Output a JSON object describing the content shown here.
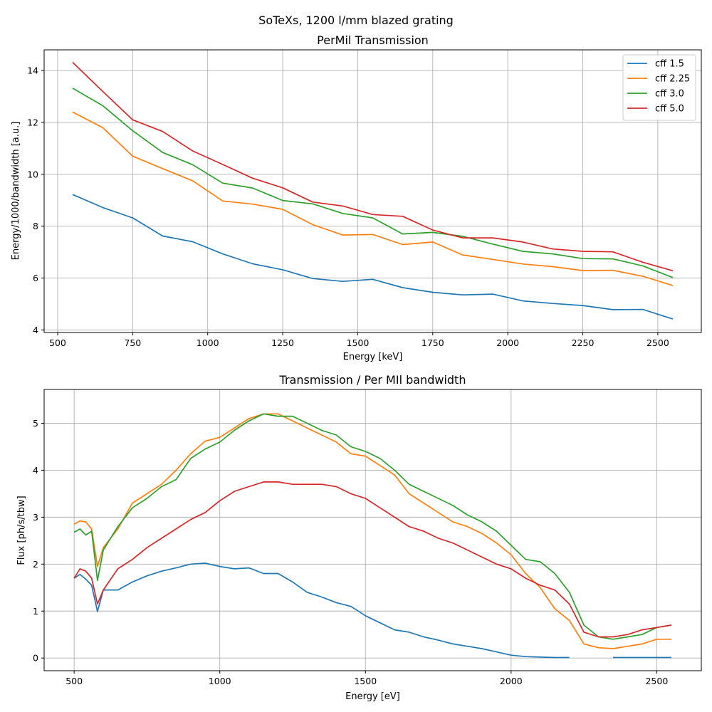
{
  "figure": {
    "suptitle": "SoTeXs, 1200 l/mm blazed grating"
  },
  "colors": {
    "cff 1.5": "#1f77b4",
    "cff 2.25": "#ff7f0e",
    "cff 3.0": "#2ca02c",
    "cff 5.0": "#d62728",
    "grid": "#b0b0b0"
  },
  "chart_data": [
    {
      "type": "line",
      "title": "PerMil Transmission",
      "xlabel": "Energy [keV]",
      "ylabel": "Energy/1000/bandwidth [a.u.]",
      "xlim": [
        455,
        2645
      ],
      "ylim": [
        3.9,
        14.8
      ],
      "xticks": [
        500,
        750,
        1000,
        1250,
        1500,
        1750,
        2000,
        2250,
        2500
      ],
      "yticks": [
        4,
        6,
        8,
        10,
        12,
        14
      ],
      "grid": true,
      "legend": "top-right",
      "x": [
        550,
        650,
        750,
        850,
        950,
        1050,
        1150,
        1250,
        1350,
        1450,
        1550,
        1650,
        1750,
        1850,
        1950,
        2050,
        2150,
        2250,
        2350,
        2450,
        2550
      ],
      "series": [
        {
          "name": "cff 1.5",
          "values": [
            9.22,
            8.72,
            8.32,
            7.62,
            7.4,
            6.93,
            6.55,
            6.32,
            5.98,
            5.87,
            5.95,
            5.63,
            5.45,
            5.35,
            5.38,
            5.12,
            5.02,
            4.94,
            4.78,
            4.79,
            4.42
          ]
        },
        {
          "name": "cff 2.25",
          "values": [
            12.4,
            11.8,
            10.7,
            10.22,
            9.75,
            8.97,
            8.85,
            8.65,
            8.06,
            7.66,
            7.68,
            7.29,
            7.39,
            6.89,
            6.72,
            6.54,
            6.44,
            6.29,
            6.3,
            6.07,
            5.71
          ]
        },
        {
          "name": "cff 3.0",
          "values": [
            13.32,
            12.65,
            11.68,
            10.84,
            10.37,
            9.66,
            9.47,
            8.99,
            8.86,
            8.49,
            8.32,
            7.7,
            7.76,
            7.61,
            7.31,
            7.03,
            6.93,
            6.75,
            6.74,
            6.47,
            6.02
          ]
        },
        {
          "name": "cff 5.0",
          "values": [
            14.32,
            13.2,
            12.1,
            11.65,
            10.9,
            10.38,
            9.85,
            9.48,
            8.93,
            8.78,
            8.45,
            8.38,
            7.85,
            7.55,
            7.55,
            7.39,
            7.12,
            7.03,
            7.01,
            6.61,
            6.28
          ]
        }
      ]
    },
    {
      "type": "line",
      "title": "Transmission / Per MIl bandwidth",
      "xlabel": "Energy [eV]",
      "ylabel": "Flux [ph/s/tbw]",
      "xlim": [
        397,
        2653
      ],
      "ylim": [
        -0.27,
        5.72
      ],
      "xticks": [
        500,
        1000,
        1500,
        2000,
        2500
      ],
      "yticks": [
        0,
        1,
        2,
        3,
        4,
        5
      ],
      "grid": true,
      "x": [
        500,
        520,
        540,
        560,
        580,
        600,
        650,
        700,
        750,
        800,
        850,
        900,
        950,
        1000,
        1050,
        1100,
        1150,
        1200,
        1250,
        1300,
        1350,
        1400,
        1450,
        1500,
        1550,
        1600,
        1650,
        1700,
        1750,
        1800,
        1850,
        1900,
        1950,
        2000,
        2050,
        2100,
        2150,
        2200,
        2250,
        2300,
        2350,
        2400,
        2450,
        2500,
        2550
      ],
      "series": [
        {
          "name": "cff 1.5",
          "values": [
            1.7,
            1.78,
            1.68,
            1.55,
            0.99,
            1.45,
            1.45,
            1.62,
            1.75,
            1.85,
            1.92,
            2.0,
            2.02,
            1.95,
            1.9,
            1.92,
            1.8,
            1.8,
            1.62,
            1.4,
            1.3,
            1.18,
            1.1,
            0.9,
            0.75,
            0.6,
            0.55,
            0.45,
            0.38,
            0.3,
            0.25,
            0.2,
            0.13,
            0.06,
            0.03,
            0.02,
            0.01,
            0.01,
            null,
            null,
            0.01,
            0.01,
            0.01,
            0.01,
            0.01
          ]
        },
        {
          "name": "cff 2.25",
          "values": [
            2.85,
            2.92,
            2.9,
            2.75,
            1.95,
            2.35,
            2.75,
            3.3,
            3.5,
            3.7,
            4.0,
            4.35,
            4.62,
            4.7,
            4.9,
            5.1,
            5.2,
            5.2,
            5.05,
            4.9,
            4.75,
            4.6,
            4.35,
            4.3,
            4.1,
            3.9,
            3.5,
            3.3,
            3.1,
            2.9,
            2.8,
            2.65,
            2.45,
            2.2,
            1.8,
            1.5,
            1.05,
            0.8,
            0.3,
            0.22,
            0.2,
            0.25,
            0.3,
            0.4,
            0.4
          ]
        },
        {
          "name": "cff 3.0",
          "values": [
            2.68,
            2.75,
            2.62,
            2.7,
            1.65,
            2.3,
            2.8,
            3.2,
            3.4,
            3.65,
            3.8,
            4.25,
            4.45,
            4.6,
            4.85,
            5.05,
            5.2,
            5.15,
            5.15,
            5.0,
            4.85,
            4.75,
            4.5,
            4.4,
            4.25,
            4.0,
            3.7,
            3.55,
            3.4,
            3.25,
            3.05,
            2.9,
            2.7,
            2.4,
            2.1,
            2.05,
            1.8,
            1.4,
            0.7,
            0.45,
            0.4,
            0.45,
            0.5,
            0.65,
            0.7
          ]
        },
        {
          "name": "cff 5.0",
          "values": [
            1.7,
            1.9,
            1.85,
            1.7,
            1.15,
            1.45,
            1.9,
            2.1,
            2.35,
            2.55,
            2.75,
            2.95,
            3.1,
            3.35,
            3.55,
            3.65,
            3.75,
            3.75,
            3.7,
            3.7,
            3.7,
            3.65,
            3.5,
            3.4,
            3.2,
            3.0,
            2.8,
            2.7,
            2.55,
            2.45,
            2.3,
            2.15,
            2.0,
            1.9,
            1.7,
            1.55,
            1.45,
            1.15,
            0.55,
            0.45,
            0.45,
            0.5,
            0.6,
            0.65,
            0.7
          ]
        }
      ]
    }
  ]
}
